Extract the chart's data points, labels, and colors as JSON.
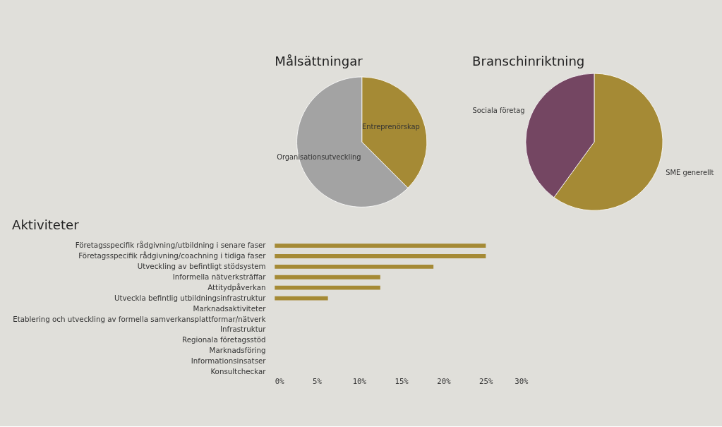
{
  "chart_data": [
    {
      "type": "pie",
      "title": "Målsättningar",
      "categories": [
        "Entreprenörskap",
        "Organisationsutveckling"
      ],
      "values": [
        37.5,
        62.5
      ],
      "colors": [
        "#a58a35",
        "#a3a3a3"
      ]
    },
    {
      "type": "pie",
      "title": "Branschinriktning",
      "categories": [
        "SME generellt",
        "Sociala företag"
      ],
      "values": [
        60,
        40
      ],
      "colors": [
        "#a58a35",
        "#744662"
      ]
    },
    {
      "type": "bar",
      "orientation": "horizontal",
      "title": "Aktiviteter",
      "categories": [
        "Företagsspecifik rådgivning/utbildning i senare faser",
        "Företagsspecifik rådgivning/coachning i tidiga faser",
        "Utveckling av befintligt stödsystem",
        "Informella nätverksträffar",
        "Attitydpåverkan",
        "Utveckla befintlig utbildningsinfrastruktur",
        "Marknadsaktiviteter",
        "Etablering och utveckling av formella samverkansplattformar/nätverk",
        "Infrastruktur",
        "Regionala företagsstöd",
        "Marknadsföring",
        "Informationsinsatser",
        "Konsultcheckar"
      ],
      "values": [
        25,
        25,
        18.8,
        12.5,
        12.5,
        6.3,
        0,
        0,
        0,
        0,
        0,
        0,
        0
      ],
      "color": "#a58a35",
      "xlim": [
        0,
        30
      ],
      "xticks": [
        {
          "value": 0,
          "label": "0%"
        },
        {
          "value": 5,
          "label": "5%"
        },
        {
          "value": 10,
          "label": "10%"
        },
        {
          "value": 15,
          "label": "15%"
        },
        {
          "value": 20,
          "label": "20%"
        },
        {
          "value": 25,
          "label": "25%"
        },
        {
          "value": 30,
          "label": "30%"
        }
      ]
    }
  ]
}
